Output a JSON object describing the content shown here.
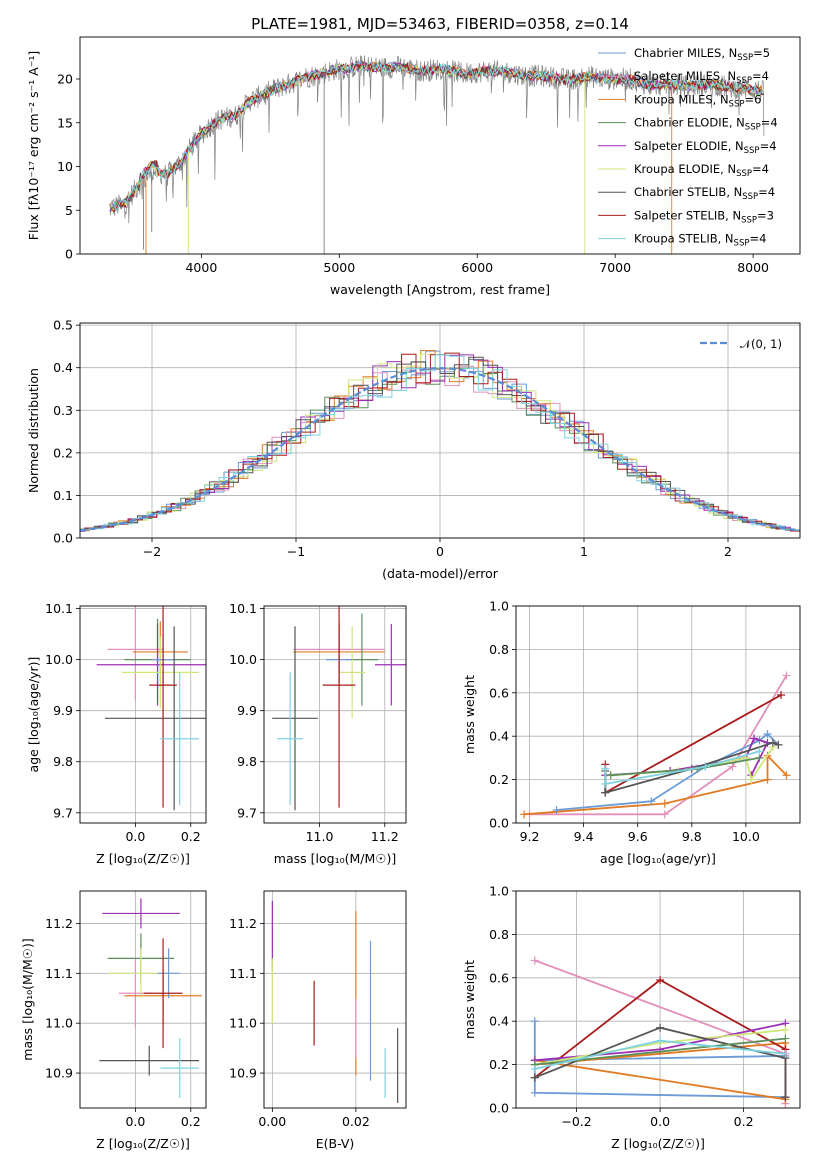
{
  "chart_data": [
    {
      "type": "line",
      "title": "PLATE=1981, MJD=53463, FIBERID=0358, z=0.14",
      "xlabel": "wavelength [Angstrom, rest frame]",
      "ylabel": "Flux [fλ10⁻¹⁷ erg cm⁻² s⁻¹ A⁻¹]",
      "xlim": [
        3120,
        8340
      ],
      "ylim": [
        0,
        24.8
      ],
      "xticks": [
        4000,
        5000,
        6000,
        7000,
        8000
      ],
      "yticks": [
        0,
        5,
        10,
        15,
        20
      ],
      "legend_position": "top-right",
      "spectrum": {
        "x": [
          3330,
          3450,
          3550,
          3650,
          3750,
          3850,
          3950,
          4050,
          4150,
          4250,
          4350,
          4450,
          4550,
          4650,
          4750,
          4850,
          4950,
          5050,
          5150,
          5300,
          5450,
          5600,
          5750,
          5900,
          6050,
          6200,
          6350,
          6500,
          6650,
          6800,
          6950,
          7100,
          7250,
          7400,
          7550,
          7700,
          7850,
          8000,
          8080
        ],
        "y": [
          5.2,
          5.8,
          8.0,
          9.5,
          9.0,
          10.5,
          12.8,
          14.5,
          15.5,
          15.8,
          17.5,
          18.2,
          19.0,
          19.5,
          20.2,
          20.5,
          21.0,
          21.2,
          21.5,
          21.3,
          21.4,
          20.9,
          21.2,
          20.6,
          20.9,
          20.8,
          20.4,
          20.3,
          19.9,
          20.3,
          20.0,
          20.0,
          19.3,
          19.4,
          19.2,
          19.4,
          19.0,
          18.9,
          18.5
        ]
      },
      "series": [
        {
          "name": "Chabrier MILES, N",
          "sub": "SSP",
          "suffix": "=5",
          "color": "#6c9bd5"
        },
        {
          "name": "Salpeter MILES, N",
          "sub": "SSP",
          "suffix": "=4",
          "color": "#e28fbb"
        },
        {
          "name": "Kroupa MILES, N",
          "sub": "SSP",
          "suffix": "=6",
          "color": "#e07b24"
        },
        {
          "name": "Chabrier ELODIE, N",
          "sub": "SSP",
          "suffix": "=4",
          "color": "#5c8f5c"
        },
        {
          "name": "Salpeter ELODIE, N",
          "sub": "SSP",
          "suffix": "=4",
          "color": "#9b30b5"
        },
        {
          "name": "Kroupa ELODIE, N",
          "sub": "SSP",
          "suffix": "=4",
          "color": "#cfe67a"
        },
        {
          "name": "Chabrier STELIB, N",
          "sub": "SSP",
          "suffix": "=4",
          "color": "#555555"
        },
        {
          "name": "Salpeter STELIB, N",
          "sub": "SSP",
          "suffix": "=3",
          "color": "#a81c1c"
        },
        {
          "name": "Kroupa STELIB, N",
          "sub": "SSP",
          "suffix": "=4",
          "color": "#7fd3e0"
        }
      ]
    },
    {
      "type": "histogram",
      "xlabel": "(data-model)/error",
      "ylabel": "Normed distribution",
      "xlim": [
        -2.5,
        2.5
      ],
      "ylim": [
        0,
        0.505
      ],
      "xticks": [
        -2,
        -1,
        0,
        1,
        2
      ],
      "xtick_labels": [
        "−2",
        "−1",
        "0",
        "1",
        "2"
      ],
      "yticks": [
        0.0,
        0.1,
        0.2,
        0.3,
        0.4,
        0.5
      ],
      "ytick_labels": [
        "0.0",
        "0.1",
        "0.2",
        "0.3",
        "0.4",
        "0.5"
      ],
      "bin_width": 0.1,
      "legend": "𝒩(0, 1)",
      "legend_position": "top-right",
      "reference_color": "#5b8dd6"
    },
    {
      "type": "scatter",
      "kind": "errorbar",
      "xlabel": "Z [log₁₀(Z/Z☉)]",
      "ylabel": "age  [log₁₀(age/yr)]",
      "xlim": [
        -0.2,
        0.255
      ],
      "ylim": [
        9.68,
        10.105
      ],
      "xticks": [
        0.0,
        0.2
      ],
      "yticks": [
        9.7,
        9.8,
        9.9,
        10.0,
        10.1
      ],
      "points": [
        {
          "x": 0.0,
          "y": 10.02,
          "xerr": 0.1,
          "yerr": 0.1,
          "color": "#e28fbb"
        },
        {
          "x": 0.09,
          "y": 10.015,
          "xerr": 0.1,
          "yerr": 0.06,
          "color": "#e07b24"
        },
        {
          "x": 0.08,
          "y": 10.0,
          "xerr": 0.12,
          "yerr": 0.08,
          "color": "#5c8f5c"
        },
        {
          "x": 0.08,
          "y": 9.99,
          "xerr": 0.22,
          "yerr": 0.08,
          "color": "#9b30b5"
        },
        {
          "x": 0.09,
          "y": 9.975,
          "xerr": 0.14,
          "yerr": 0.07,
          "color": "#cfe67a"
        },
        {
          "x": 0.1,
          "y": 10.0,
          "xerr": 0.04,
          "yerr": 0.05,
          "color": "#6c9bd5"
        },
        {
          "x": 0.14,
          "y": 9.885,
          "xerr": 0.25,
          "yerr": 0.18,
          "color": "#555555"
        },
        {
          "x": 0.1,
          "y": 9.95,
          "xerr": 0.05,
          "yerr": 0.24,
          "color": "#a81c1c"
        },
        {
          "x": 0.16,
          "y": 9.845,
          "xerr": 0.07,
          "yerr": 0.13,
          "color": "#7fd3e0"
        }
      ]
    },
    {
      "type": "scatter",
      "kind": "errorbar",
      "xlabel": "mass [log₁₀(M/M☉)]",
      "ylabel": "",
      "xlim": [
        10.83,
        11.265
      ],
      "ylim": [
        9.68,
        10.105
      ],
      "xticks": [
        11.0,
        11.2
      ],
      "yticks": [
        9.7,
        9.8,
        9.9,
        10.0,
        10.1
      ],
      "points": [
        {
          "x": 11.06,
          "y": 10.02,
          "xerr": 0.14,
          "yerr": 0.05,
          "color": "#e28fbb"
        },
        {
          "x": 11.06,
          "y": 10.015,
          "xerr": 0.14,
          "yerr": 0.06,
          "color": "#e07b24"
        },
        {
          "x": 11.13,
          "y": 10.0,
          "xerr": 0.05,
          "yerr": 0.09,
          "color": "#5c8f5c"
        },
        {
          "x": 11.22,
          "y": 9.99,
          "xerr": 0.05,
          "yerr": 0.08,
          "color": "#9b30b5"
        },
        {
          "x": 11.1,
          "y": 9.975,
          "xerr": 0.04,
          "yerr": 0.09,
          "color": "#cfe67a"
        },
        {
          "x": 11.06,
          "y": 10.0,
          "xerr": 0.04,
          "yerr": 0.05,
          "color": "#6c9bd5"
        },
        {
          "x": 10.925,
          "y": 9.885,
          "xerr": 0.07,
          "yerr": 0.18,
          "color": "#555555"
        },
        {
          "x": 11.06,
          "y": 9.95,
          "xerr": 0.05,
          "yerr": 0.24,
          "color": "#a81c1c"
        },
        {
          "x": 10.91,
          "y": 9.845,
          "xerr": 0.04,
          "yerr": 0.13,
          "color": "#7fd3e0"
        }
      ]
    },
    {
      "type": "line",
      "xlabel": "age  [log₁₀(age/yr)]",
      "ylabel": "mass weight",
      "xlim": [
        9.15,
        10.2
      ],
      "ylim": [
        0,
        1.0
      ],
      "xticks": [
        9.2,
        9.4,
        9.6,
        9.8,
        10.0
      ],
      "yticks": [
        0.0,
        0.2,
        0.4,
        0.6,
        0.8,
        1.0
      ],
      "series": [
        {
          "color": "#e28fbb",
          "x": [
            9.2,
            9.7,
            9.95,
            10.15
          ],
          "y": [
            0.04,
            0.04,
            0.26,
            0.68
          ]
        },
        {
          "color": "#a81c1c",
          "x": [
            9.48,
            9.48,
            10.13
          ],
          "y": [
            0.27,
            0.14,
            0.59
          ]
        },
        {
          "color": "#e07b24",
          "x": [
            9.18,
            9.7,
            10.08,
            10.08,
            10.15
          ],
          "y": [
            0.04,
            0.09,
            0.2,
            0.31,
            0.22
          ]
        },
        {
          "color": "#6c9bd5",
          "x": [
            9.3,
            9.65,
            9.85,
            10.05,
            10.08,
            10.12
          ],
          "y": [
            0.06,
            0.1,
            0.26,
            0.38,
            0.41,
            0.36
          ]
        },
        {
          "color": "#9b30b5",
          "x": [
            9.48,
            9.72,
            10.0,
            10.03,
            10.08,
            10.02
          ],
          "y": [
            0.22,
            0.24,
            0.3,
            0.39,
            0.37,
            0.22
          ]
        },
        {
          "color": "#cfe67a",
          "x": [
            9.5,
            9.75,
            10.0,
            10.02,
            10.1
          ],
          "y": [
            0.22,
            0.24,
            0.3,
            0.2,
            0.35
          ]
        },
        {
          "color": "#555555",
          "x": [
            9.48,
            9.48,
            9.8,
            10.1,
            10.12
          ],
          "y": [
            0.24,
            0.14,
            0.25,
            0.37,
            0.36
          ]
        },
        {
          "color": "#5c8f5c",
          "x": [
            9.5,
            9.82,
            10.05
          ],
          "y": [
            0.22,
            0.25,
            0.3
          ]
        },
        {
          "color": "#7fd3e0",
          "x": [
            9.48,
            9.48,
            9.85,
            10.05
          ],
          "y": [
            0.25,
            0.18,
            0.26,
            0.33
          ]
        }
      ]
    },
    {
      "type": "scatter",
      "kind": "errorbar",
      "xlabel": "Z [log₁₀(Z/Z☉)]",
      "ylabel": "mass [log₁₀(M/M☉)]",
      "xlim": [
        -0.2,
        0.255
      ],
      "ylim": [
        10.83,
        11.265
      ],
      "xticks": [
        0.0,
        0.2
      ],
      "yticks": [
        10.9,
        11.0,
        11.1,
        11.2
      ],
      "points": [
        {
          "x": 0.0,
          "y": 11.06,
          "xerr": 0.06,
          "yerr": 0.07,
          "color": "#e28fbb"
        },
        {
          "x": 0.1,
          "y": 11.055,
          "xerr": 0.14,
          "yerr": 0.06,
          "color": "#e07b24"
        },
        {
          "x": 0.02,
          "y": 11.13,
          "xerr": 0.12,
          "yerr": 0.05,
          "color": "#5c8f5c"
        },
        {
          "x": 0.02,
          "y": 11.22,
          "xerr": 0.14,
          "yerr": 0.03,
          "color": "#9b30b5"
        },
        {
          "x": 0.02,
          "y": 11.1,
          "xerr": 0.12,
          "yerr": 0.05,
          "color": "#cfe67a"
        },
        {
          "x": 0.12,
          "y": 11.1,
          "xerr": 0.04,
          "yerr": 0.05,
          "color": "#6c9bd5"
        },
        {
          "x": 0.05,
          "y": 10.925,
          "xerr": 0.18,
          "yerr": 0.03,
          "color": "#555555"
        },
        {
          "x": 0.1,
          "y": 11.06,
          "xerr": 0.07,
          "yerr": 0.11,
          "color": "#a81c1c"
        },
        {
          "x": 0.16,
          "y": 10.91,
          "xerr": 0.07,
          "yerr": 0.06,
          "color": "#7fd3e0"
        }
      ]
    },
    {
      "type": "scatter",
      "kind": "vertical-errorbar",
      "xlabel": "E(B-V)",
      "ylabel": "",
      "xlim": [
        -0.002,
        0.032
      ],
      "ylim": [
        10.83,
        11.265
      ],
      "xticks": [
        0.0,
        0.02
      ],
      "yticks": [
        10.9,
        11.0,
        11.1,
        11.2
      ],
      "points": [
        {
          "x": 0.0,
          "y": 11.175,
          "yerr": 0.07,
          "color": "#9b30b5"
        },
        {
          "x": 0.0,
          "y": 11.065,
          "yerr": 0.065,
          "color": "#cfe67a"
        },
        {
          "x": 0.01,
          "y": 11.02,
          "yerr": 0.065,
          "color": "#a81c1c"
        },
        {
          "x": 0.02,
          "y": 11.06,
          "yerr": 0.165,
          "color": "#e07b24"
        },
        {
          "x": 0.02,
          "y": 10.99,
          "yerr": 0.06,
          "color": "#e28fbb"
        },
        {
          "x": 0.0235,
          "y": 11.025,
          "yerr": 0.14,
          "color": "#6c9bd5"
        },
        {
          "x": 0.027,
          "y": 10.9,
          "yerr": 0.05,
          "color": "#7fd3e0"
        },
        {
          "x": 0.03,
          "y": 10.915,
          "yerr": 0.075,
          "color": "#555555"
        }
      ]
    },
    {
      "type": "line",
      "xlabel": "Z [log₁₀(Z/Z☉)]",
      "ylabel": "mass weight",
      "xlim": [
        -0.345,
        0.335
      ],
      "ylim": [
        0,
        1.0
      ],
      "xticks": [
        -0.2,
        0.0,
        0.2
      ],
      "xtick_labels": [
        "−0.2",
        "0.0",
        "0.2"
      ],
      "yticks": [
        0.0,
        0.2,
        0.4,
        0.6,
        0.8,
        1.0
      ],
      "series": [
        {
          "color": "#6c9bd5",
          "x": [
            -0.3,
            -0.3,
            0.3,
            0.3,
            -0.3
          ],
          "y": [
            0.4,
            0.07,
            0.05,
            0.24,
            0.22
          ]
        },
        {
          "color": "#e28fbb",
          "x": [
            -0.3,
            0.3,
            0.3
          ],
          "y": [
            0.68,
            0.25,
            0.02
          ]
        },
        {
          "color": "#e07b24",
          "x": [
            -0.3,
            0.3,
            0.3,
            -0.3
          ],
          "y": [
            0.22,
            0.04,
            0.3,
            0.2
          ]
        },
        {
          "color": "#a81c1c",
          "x": [
            -0.3,
            0.0,
            0.3,
            0.3
          ],
          "y": [
            0.14,
            0.59,
            0.27,
            0.05
          ]
        },
        {
          "color": "#9b30b5",
          "x": [
            -0.3,
            0.0,
            0.3
          ],
          "y": [
            0.22,
            0.27,
            0.39
          ]
        },
        {
          "color": "#cfe67a",
          "x": [
            -0.3,
            0.0,
            0.3
          ],
          "y": [
            0.2,
            0.3,
            0.36
          ]
        },
        {
          "color": "#555555",
          "x": [
            -0.3,
            0.0,
            0.3,
            0.3
          ],
          "y": [
            0.14,
            0.37,
            0.23,
            0.05
          ]
        },
        {
          "color": "#5c8f5c",
          "x": [
            -0.3,
            0.3
          ],
          "y": [
            0.2,
            0.32
          ]
        },
        {
          "color": "#7fd3e0",
          "x": [
            -0.3,
            0.0,
            0.3
          ],
          "y": [
            0.18,
            0.31,
            0.25
          ]
        }
      ]
    }
  ]
}
